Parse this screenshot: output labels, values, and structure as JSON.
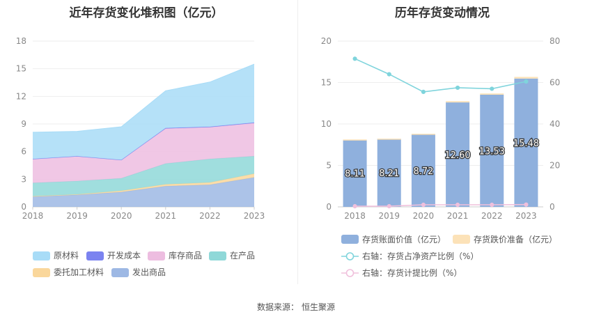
{
  "left_chart": {
    "title": "近年存货变化堆积图（亿元）"
  },
  "right_chart": {
    "title": "历年存货变动情况"
  },
  "source": {
    "label": "数据来源：",
    "value": "恒生聚源"
  },
  "colors": {
    "raw_material": "#a8dcf7",
    "dev_cost": "#7b83f0",
    "inventory_goods": "#edbde0",
    "wip": "#8fd8d8",
    "consigned": "#fad79b",
    "shipped": "#9db8e4",
    "bar_value": "#8fb0dd",
    "bar_provision": "#fce2b8",
    "line_ratio": "#7fd4dc",
    "line_provision_ratio": "#f0c0dc"
  },
  "chart_data": [
    {
      "type": "area",
      "title": "近年存货变化堆积图（亿元）",
      "x": [
        "2018",
        "2019",
        "2020",
        "2021",
        "2022",
        "2023"
      ],
      "ylim": [
        0,
        18
      ],
      "yticks": [
        0,
        3,
        6,
        9,
        12,
        15,
        18
      ],
      "stacked": true,
      "grid": true,
      "legend_position": "bottom",
      "series": [
        {
          "name": "发出商品",
          "key": "shipped",
          "values": [
            1.1,
            1.3,
            1.6,
            2.25,
            2.4,
            3.2
          ]
        },
        {
          "name": "委托加工材料",
          "key": "consigned",
          "values": [
            0.05,
            0.05,
            0.15,
            0.2,
            0.25,
            0.4
          ]
        },
        {
          "name": "在产品",
          "key": "wip",
          "values": [
            1.45,
            1.45,
            1.35,
            2.25,
            2.55,
            1.9
          ]
        },
        {
          "name": "库存商品",
          "key": "inventory_goods",
          "values": [
            2.6,
            2.7,
            2.0,
            3.8,
            3.45,
            3.6
          ]
        },
        {
          "name": "开发成本",
          "key": "dev_cost",
          "values": [
            0,
            0,
            0,
            0.05,
            0.05,
            0.05
          ]
        },
        {
          "name": "原材料",
          "key": "raw_material",
          "values": [
            2.9,
            2.7,
            3.6,
            4.05,
            4.85,
            6.35
          ]
        }
      ],
      "legend_order": [
        "原材料",
        "开发成本",
        "库存商品",
        "在产品",
        "委托加工材料",
        "发出商品"
      ]
    },
    {
      "type": "bar",
      "title": "历年存货变动情况",
      "categories": [
        "2018",
        "2019",
        "2020",
        "2021",
        "2022",
        "2023"
      ],
      "ylim": [
        0,
        20
      ],
      "yticks": [
        0,
        5,
        10,
        15,
        20
      ],
      "y2lim": [
        0,
        80
      ],
      "y2ticks": [
        0,
        20,
        40,
        60,
        80
      ],
      "grid": true,
      "legend_position": "bottom",
      "series": [
        {
          "name": "存货账面价值（亿元）",
          "kind": "bar",
          "values": [
            8.11,
            8.21,
            8.72,
            12.6,
            13.53,
            15.48
          ],
          "labels": [
            "8.11",
            "8.21",
            "8.72",
            "12.60",
            "13.53",
            "15.48"
          ]
        },
        {
          "name": "存货跌价准备（亿元）",
          "kind": "bar-stack",
          "values": [
            0.02,
            0.02,
            0.1,
            0.15,
            0.15,
            0.2
          ]
        },
        {
          "name": "右轴：存货占净资产比例（%）",
          "kind": "line",
          "axis": "right",
          "values": [
            71.5,
            64,
            55.5,
            57.5,
            57,
            60.5
          ]
        },
        {
          "name": "右轴：存货计提比例（%）",
          "kind": "line",
          "axis": "right",
          "values": [
            0.3,
            0.3,
            1.0,
            1.0,
            1.0,
            1.1
          ]
        }
      ]
    }
  ]
}
